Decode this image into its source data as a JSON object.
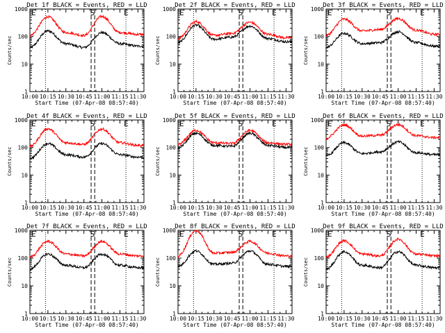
{
  "shared": {
    "ylabel": "Counts/sec",
    "xlabel": "Start Time (07-Apr-08 08:57:40)",
    "xticks": [
      "10:00",
      "10:15",
      "10:30",
      "10:45",
      "11:00",
      "11:15",
      "11:30"
    ],
    "yticks": [
      "1",
      "10",
      "100",
      "1000"
    ],
    "marker_labels": [
      "E",
      "S",
      "E"
    ],
    "events_color": "#000000",
    "lld_color": "#ff0000"
  },
  "chart_data": [
    {
      "type": "line",
      "title": "Det 1f BLACK = Events, RED = LLD",
      "x": [
        "10:00",
        "10:15",
        "10:30",
        "10:45",
        "11:00",
        "11:15",
        "11:30"
      ],
      "series": [
        {
          "name": "Events",
          "values": [
            40,
            160,
            55,
            40,
            140,
            55,
            45
          ]
        },
        {
          "name": "LLD",
          "values": [
            110,
            520,
            140,
            110,
            540,
            140,
            120
          ]
        }
      ],
      "ylim": [
        1,
        1000
      ],
      "yscale": "log"
    },
    {
      "type": "line",
      "title": "Det 2f BLACK = Events, RED = LLD",
      "x": [
        "10:00",
        "10:15",
        "10:30",
        "10:45",
        "11:00",
        "11:15",
        "11:30"
      ],
      "series": [
        {
          "name": "Events",
          "values": [
            60,
            260,
            80,
            95,
            240,
            85,
            65
          ]
        },
        {
          "name": "LLD",
          "values": [
            85,
            350,
            110,
            130,
            330,
            120,
            90
          ]
        }
      ],
      "ylim": [
        1,
        1000
      ],
      "yscale": "log"
    },
    {
      "type": "line",
      "title": "Det 3f BLACK = Events, RED = LLD",
      "x": [
        "10:00",
        "10:15",
        "10:30",
        "10:45",
        "11:00",
        "11:15",
        "11:30"
      ],
      "series": [
        {
          "name": "Events",
          "values": [
            40,
            130,
            55,
            60,
            150,
            60,
            45
          ]
        },
        {
          "name": "LLD",
          "values": [
            110,
            430,
            160,
            180,
            450,
            170,
            120
          ]
        }
      ],
      "ylim": [
        1,
        1000
      ],
      "yscale": "log"
    },
    {
      "type": "line",
      "title": "Det 4f BLACK = Events, RED = LLD",
      "x": [
        "10:00",
        "10:15",
        "10:30",
        "10:45",
        "11:00",
        "11:15",
        "11:30"
      ],
      "series": [
        {
          "name": "Events",
          "values": [
            40,
            140,
            55,
            45,
            140,
            55,
            45
          ]
        },
        {
          "name": "LLD",
          "values": [
            110,
            480,
            150,
            130,
            470,
            150,
            120
          ]
        }
      ],
      "ylim": [
        1,
        1000
      ],
      "yscale": "log"
    },
    {
      "type": "line",
      "title": "Det 5f BLACK = Events, RED = LLD",
      "x": [
        "10:00",
        "10:15",
        "10:30",
        "10:45",
        "11:00",
        "11:15",
        "11:30"
      ],
      "series": [
        {
          "name": "Events",
          "values": [
            100,
            330,
            120,
            110,
            330,
            120,
            100
          ]
        },
        {
          "name": "LLD",
          "values": [
            130,
            420,
            150,
            140,
            420,
            150,
            130
          ]
        }
      ],
      "ylim": [
        1,
        1000
      ],
      "yscale": "log"
    },
    {
      "type": "line",
      "title": "Det 6f BLACK = Events, RED = LLD",
      "x": [
        "10:00",
        "10:15",
        "10:30",
        "10:45",
        "11:00",
        "11:15",
        "11:30"
      ],
      "series": [
        {
          "name": "Events",
          "values": [
            50,
            150,
            60,
            70,
            160,
            65,
            55
          ]
        },
        {
          "name": "LLD",
          "values": [
            220,
            660,
            260,
            280,
            680,
            270,
            230
          ]
        }
      ],
      "ylim": [
        1,
        1000
      ],
      "yscale": "log"
    },
    {
      "type": "line",
      "title": "Det 7f BLACK = Events, RED = LLD",
      "x": [
        "10:00",
        "10:15",
        "10:30",
        "10:45",
        "11:00",
        "11:15",
        "11:30"
      ],
      "series": [
        {
          "name": "Events",
          "values": [
            40,
            140,
            55,
            45,
            140,
            55,
            45
          ]
        },
        {
          "name": "LLD",
          "values": [
            110,
            400,
            140,
            120,
            400,
            140,
            120
          ]
        }
      ],
      "ylim": [
        1,
        1000
      ],
      "yscale": "log"
    },
    {
      "type": "line",
      "title": "Det 8f BLACK = Events, RED = LLD",
      "x": [
        "10:00",
        "10:15",
        "10:30",
        "10:45",
        "11:00",
        "11:15",
        "11:30"
      ],
      "series": [
        {
          "name": "Events",
          "values": [
            50,
            180,
            60,
            65,
            180,
            60,
            50
          ]
        },
        {
          "name": "LLD",
          "values": [
            120,
            1000,
            150,
            160,
            400,
            150,
            120
          ]
        }
      ],
      "ylim": [
        1,
        1000
      ],
      "yscale": "log"
    },
    {
      "type": "line",
      "title": "Det 9f BLACK = Events, RED = LLD",
      "x": [
        "10:00",
        "10:15",
        "10:30",
        "10:45",
        "11:00",
        "11:15",
        "11:30"
      ],
      "series": [
        {
          "name": "Events",
          "values": [
            40,
            170,
            55,
            45,
            170,
            55,
            45
          ]
        },
        {
          "name": "LLD",
          "values": [
            110,
            420,
            140,
            120,
            480,
            140,
            120
          ]
        }
      ],
      "ylim": [
        1,
        1000
      ],
      "yscale": "log"
    }
  ]
}
